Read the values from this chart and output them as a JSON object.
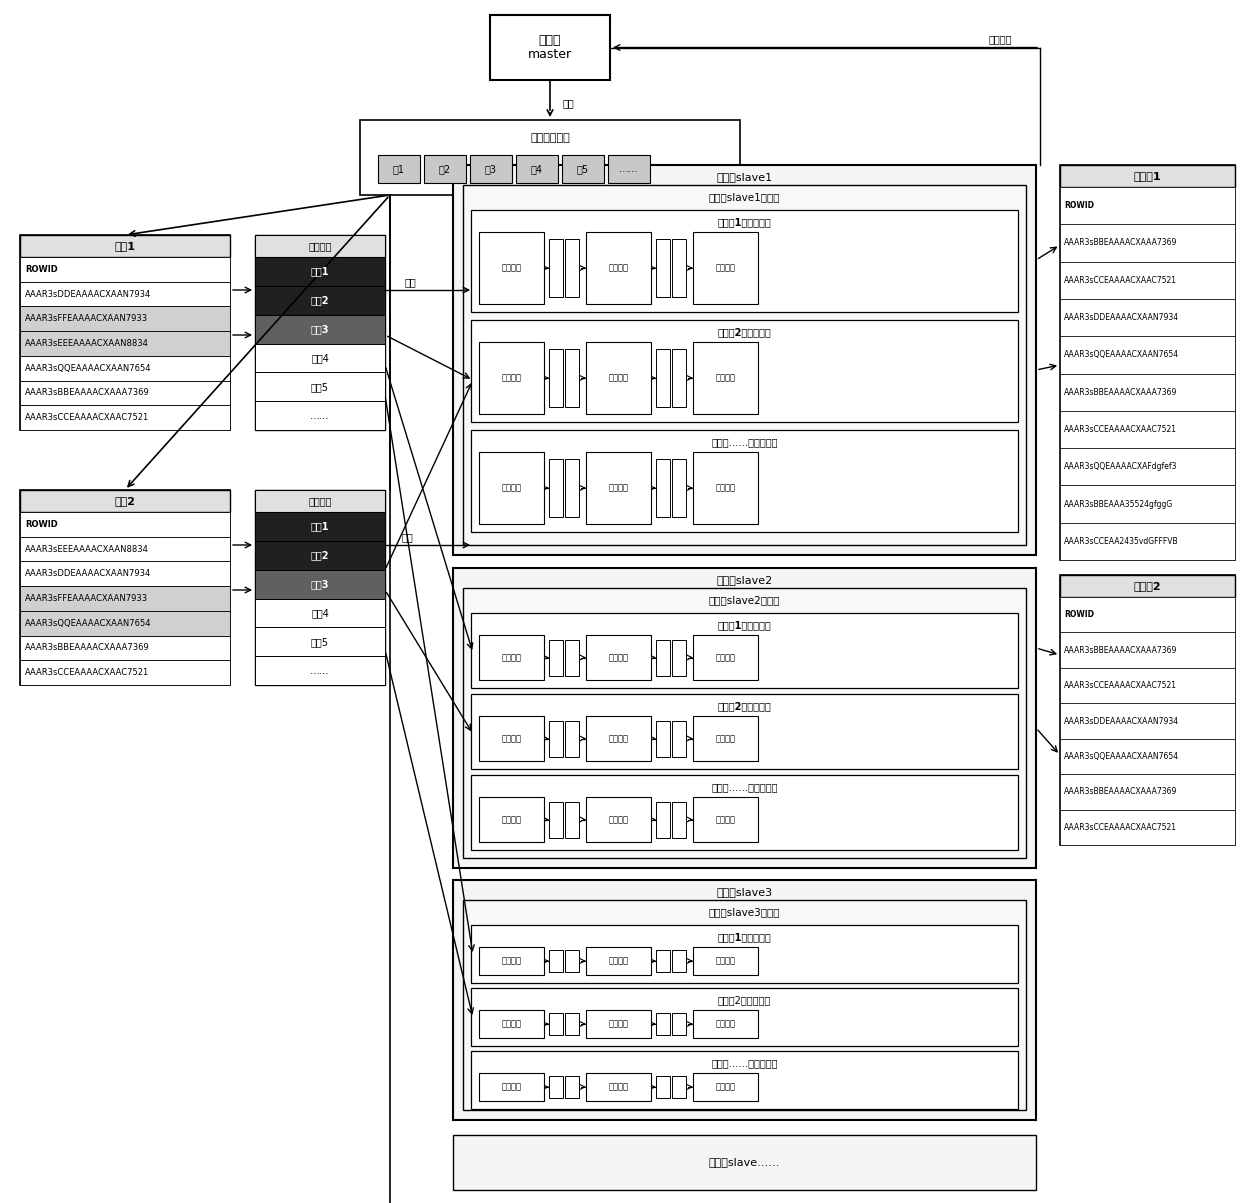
{
  "bg_color": "#ffffff",
  "server_master_label": "服务器\nmaster",
  "scheduler_label": "线程总调度器",
  "tables_in_scheduler": [
    "表1",
    "表2",
    "表3",
    "表4",
    "表5",
    "……"
  ],
  "source_table1_title": "源表1",
  "source_table1_rows": [
    "ROWID",
    "AAAR3sDDEAAAACXAAN7934",
    "AAAR3sFFEAAAACXAAN7933",
    "AAAR3sEEEAAAACXAAN8834",
    "AAAR3sQQEAAAACXAAN7654",
    "AAAR3sBBEAAAACXAAA7369",
    "AAAR3sCCEAAAACXAAC7521"
  ],
  "source_table2_title": "源表2",
  "source_table2_rows": [
    "ROWID",
    "AAAR3sEEEAAAACXAAN8834",
    "AAAR3sDDEAAAACXAAN7934",
    "AAAR3sFFEAAAACXAAN7933",
    "AAAR3sQQEAAAACXAAN7654",
    "AAAR3sBBEAAAACXAAA7369",
    "AAAR3sCCEAAAACXAAC7521"
  ],
  "frag_queue_title": "分片队列",
  "frag_queue_rows_bold": [
    "分片1",
    "分片2",
    "分片3"
  ],
  "frag_queue_rows_normal": [
    "分片4",
    "分片5",
    "……"
  ],
  "slave1_label": "服务器slave1",
  "slave1_pipe_label": "服务器slave1的管道",
  "slave1_groups": [
    "管道组1（已启动）",
    "管道组2（已启动）",
    "管道组……（未启动）"
  ],
  "slave2_label": "服务器slave2",
  "slave2_pipe_label": "服务器slave2的管道",
  "slave2_groups": [
    "管道组1（已启动）",
    "管道组2（已启动）",
    "管道组……（未启动）"
  ],
  "slave3_label": "服务器slave3",
  "slave3_pipe_label": "服务器slave3的管道",
  "slave3_groups": [
    "管道组1（已启动）",
    "管道组2（未启动）",
    "管道组……（未启动）"
  ],
  "slave_dots_label": "服务器slave……",
  "target_table1_title": "目标表1",
  "target_table1_rows": [
    "ROWID",
    "AAAR3sBBEAAAACXAAA7369",
    "AAAR3sCCEAAAACXAAC7521",
    "AAAR3sDDEAAAACXAAN7934",
    "AAAR3sQQEAAAACXAAN7654",
    "AAAR3sBBEAAAACXAAA7369",
    "AAAR3sCCEAAAACXAAC7521",
    "AAAR3sQQEAAAACXAFdgfef3",
    "AAAR3sBBEAAA35524gfggG",
    "AAAR3sCCEAA2435vdGFFFVB"
  ],
  "target_table2_title": "目标表2",
  "target_table2_rows": [
    "ROWID",
    "AAAR3sBBEAAAACXAAA7369",
    "AAAR3sCCEAAAACXAAC7521",
    "AAAR3sDDEAAAACXAAN7934",
    "AAAR3sQQEAAAACXAAN7654",
    "AAAR3sBBEAAAACXAAA7369",
    "AAAR3sCCEAAAACXAAC7521"
  ],
  "pull_label": "拉取",
  "assign_label": "分配",
  "report_label": "上报状态",
  "pipeline_elements": [
    "抽取线程",
    "脱敏线程",
    "加载线程"
  ]
}
